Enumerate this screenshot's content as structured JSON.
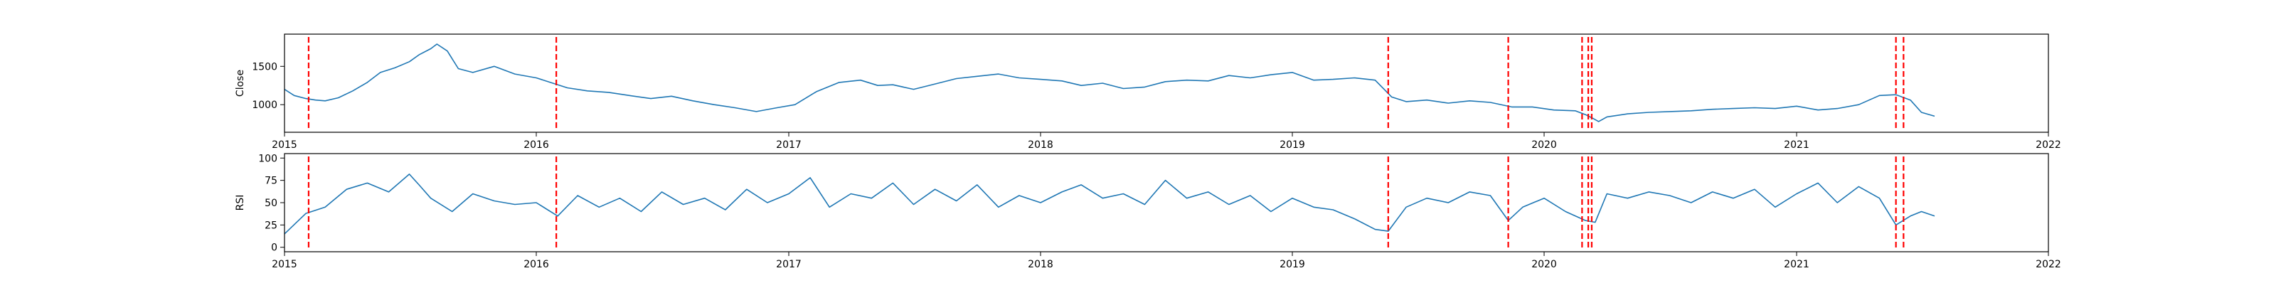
{
  "chart_data": [
    {
      "type": "line",
      "ylabel": "Close",
      "xlim": [
        "2015-01-01",
        "2022-01-01"
      ],
      "ylim": [
        640,
        1920
      ],
      "yticks": [
        1000,
        1500
      ],
      "xtick_labels": [
        "2015",
        "2016",
        "2017",
        "2018",
        "2019",
        "2020",
        "2021",
        "2022"
      ],
      "line_color": "#1f77b4",
      "series": [
        {
          "x": [
            "2015-01-01",
            "2015-01-15",
            "2015-02-01",
            "2015-02-15",
            "2015-03-01",
            "2015-03-20",
            "2015-04-10",
            "2015-05-01",
            "2015-05-20",
            "2015-06-10",
            "2015-07-01",
            "2015-07-15",
            "2015-08-01",
            "2015-08-10",
            "2015-08-25",
            "2015-09-10",
            "2015-10-01",
            "2015-11-01",
            "2015-12-01",
            "2016-01-01",
            "2016-01-25",
            "2016-02-15",
            "2016-03-15",
            "2016-04-15",
            "2016-05-15",
            "2016-06-15",
            "2016-07-15",
            "2016-08-15",
            "2016-09-15",
            "2016-10-15",
            "2016-11-15",
            "2016-12-15",
            "2017-01-10",
            "2017-02-10",
            "2017-03-15",
            "2017-04-15",
            "2017-05-10",
            "2017-06-01",
            "2017-07-01",
            "2017-08-01",
            "2017-09-01",
            "2017-10-01",
            "2017-11-01",
            "2017-12-01",
            "2018-01-01",
            "2018-02-01",
            "2018-03-01",
            "2018-04-01",
            "2018-05-01",
            "2018-06-01",
            "2018-07-01",
            "2018-08-01",
            "2018-09-01",
            "2018-10-01",
            "2018-11-01",
            "2018-12-01",
            "2019-01-01",
            "2019-02-01",
            "2019-03-01",
            "2019-04-01",
            "2019-05-01",
            "2019-05-25",
            "2019-06-15",
            "2019-07-15",
            "2019-08-15",
            "2019-09-15",
            "2019-10-15",
            "2019-11-15",
            "2019-12-15",
            "2020-01-15",
            "2020-02-15",
            "2020-03-01",
            "2020-03-12",
            "2020-03-20",
            "2020-04-01",
            "2020-05-01",
            "2020-06-01",
            "2020-07-01",
            "2020-08-01",
            "2020-09-01",
            "2020-10-01",
            "2020-11-01",
            "2020-12-01",
            "2021-01-01",
            "2021-02-01",
            "2021-03-01",
            "2021-04-01",
            "2021-05-01",
            "2021-05-25",
            "2021-06-15",
            "2021-07-01",
            "2021-07-20"
          ],
          "y": [
            1200,
            1120,
            1080,
            1060,
            1050,
            1090,
            1180,
            1290,
            1420,
            1480,
            1560,
            1650,
            1730,
            1790,
            1700,
            1470,
            1420,
            1500,
            1400,
            1350,
            1280,
            1220,
            1180,
            1160,
            1120,
            1080,
            1110,
            1050,
            1000,
            960,
            910,
            960,
            1000,
            1170,
            1290,
            1320,
            1250,
            1260,
            1200,
            1270,
            1340,
            1370,
            1400,
            1350,
            1330,
            1310,
            1250,
            1280,
            1210,
            1230,
            1300,
            1320,
            1310,
            1380,
            1350,
            1390,
            1420,
            1320,
            1330,
            1350,
            1320,
            1100,
            1040,
            1060,
            1020,
            1050,
            1030,
            970,
            970,
            930,
            920,
            870,
            820,
            780,
            840,
            880,
            900,
            910,
            920,
            940,
            950,
            960,
            950,
            980,
            930,
            950,
            1000,
            1120,
            1130,
            1060,
            900,
            850
          ]
        }
      ],
      "vlines": [
        "2015-02-05",
        "2016-01-30",
        "2019-05-20",
        "2019-11-10",
        "2020-02-25",
        "2020-03-05",
        "2020-03-10",
        "2021-05-25",
        "2021-06-05"
      ],
      "vline_color": "#ff0000"
    },
    {
      "type": "line",
      "ylabel": "RSI",
      "xlim": [
        "2015-01-01",
        "2022-01-01"
      ],
      "ylim": [
        -5,
        105
      ],
      "yticks": [
        0,
        25,
        50,
        75,
        100
      ],
      "xtick_labels": [
        "2015",
        "2016",
        "2017",
        "2018",
        "2019",
        "2020",
        "2021",
        "2022"
      ],
      "line_color": "#1f77b4",
      "series": [
        {
          "x": [
            "2015-01-01",
            "2015-02-01",
            "2015-03-01",
            "2015-04-01",
            "2015-05-01",
            "2015-06-01",
            "2015-07-01",
            "2015-07-15",
            "2015-08-01",
            "2015-09-01",
            "2015-10-01",
            "2015-11-01",
            "2015-12-01",
            "2016-01-01",
            "2016-02-01",
            "2016-03-01",
            "2016-04-01",
            "2016-05-01",
            "2016-06-01",
            "2016-07-01",
            "2016-08-01",
            "2016-09-01",
            "2016-10-01",
            "2016-11-01",
            "2016-12-01",
            "2017-01-01",
            "2017-02-01",
            "2017-03-01",
            "2017-04-01",
            "2017-05-01",
            "2017-06-01",
            "2017-07-01",
            "2017-08-01",
            "2017-09-01",
            "2017-10-01",
            "2017-11-01",
            "2017-12-01",
            "2018-01-01",
            "2018-02-01",
            "2018-03-01",
            "2018-04-01",
            "2018-05-01",
            "2018-06-01",
            "2018-07-01",
            "2018-08-01",
            "2018-09-01",
            "2018-10-01",
            "2018-11-01",
            "2018-12-01",
            "2019-01-01",
            "2019-02-01",
            "2019-03-01",
            "2019-04-01",
            "2019-05-01",
            "2019-05-20",
            "2019-06-15",
            "2019-07-15",
            "2019-08-15",
            "2019-09-15",
            "2019-10-15",
            "2019-11-10",
            "2019-12-01",
            "2020-01-01",
            "2020-02-01",
            "2020-03-01",
            "2020-03-15",
            "2020-04-01",
            "2020-05-01",
            "2020-06-01",
            "2020-07-01",
            "2020-08-01",
            "2020-09-01",
            "2020-10-01",
            "2020-11-01",
            "2020-12-01",
            "2021-01-01",
            "2021-02-01",
            "2021-03-01",
            "2021-04-01",
            "2021-05-01",
            "2021-05-25",
            "2021-06-15",
            "2021-07-01",
            "2021-07-20"
          ],
          "y": [
            15,
            38,
            45,
            65,
            72,
            62,
            82,
            70,
            55,
            40,
            60,
            52,
            48,
            50,
            35,
            58,
            45,
            55,
            40,
            62,
            48,
            55,
            42,
            65,
            50,
            60,
            78,
            45,
            60,
            55,
            72,
            48,
            65,
            52,
            70,
            45,
            58,
            50,
            62,
            70,
            55,
            60,
            48,
            75,
            55,
            62,
            48,
            58,
            40,
            55,
            45,
            42,
            32,
            20,
            18,
            45,
            55,
            50,
            62,
            58,
            30,
            45,
            55,
            40,
            30,
            28,
            60,
            55,
            62,
            58,
            50,
            62,
            55,
            65,
            45,
            60,
            72,
            50,
            68,
            55,
            25,
            35,
            40,
            35
          ]
        }
      ],
      "vlines": [
        "2015-02-05",
        "2016-01-30",
        "2019-05-20",
        "2019-11-10",
        "2020-02-25",
        "2020-03-05",
        "2020-03-10",
        "2021-05-25",
        "2021-06-05"
      ],
      "vline_color": "#ff0000"
    }
  ]
}
